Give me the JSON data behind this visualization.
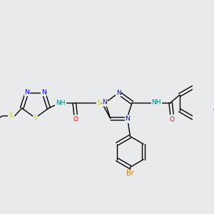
{
  "background_color": "#e8eaec",
  "atom_colors": {
    "N": "#0000ff",
    "S": "#cccc00",
    "O": "#ff0000",
    "Br": "#cc8800",
    "NH": "#008080",
    "C": "#000000"
  },
  "figsize": [
    3.0,
    3.0
  ],
  "dpi": 100
}
